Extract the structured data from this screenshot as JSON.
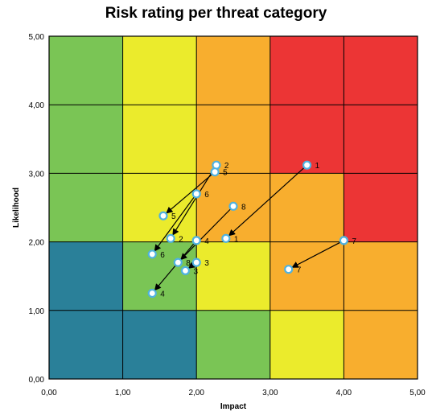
{
  "chart_data": {
    "type": "scatter",
    "title": "Risk rating per threat category",
    "xlabel": "Impact",
    "ylabel": "Likelihood",
    "xlim": [
      0,
      5
    ],
    "ylim": [
      0,
      5
    ],
    "x_ticks": [
      "0,00",
      "1,00",
      "2,00",
      "3,00",
      "4,00",
      "5,00"
    ],
    "y_ticks": [
      "0,00",
      "1,00",
      "2,00",
      "3,00",
      "4,00",
      "5,00"
    ],
    "grid": true,
    "background_zones": {
      "rows_top_to_bottom": [
        [
          "green",
          "yellow",
          "orange",
          "red",
          "red"
        ],
        [
          "green",
          "yellow",
          "orange",
          "red",
          "red"
        ],
        [
          "green",
          "yellow",
          "orange",
          "orange",
          "red"
        ],
        [
          "blue",
          "green",
          "yellow",
          "orange",
          "orange"
        ],
        [
          "blue",
          "blue",
          "green",
          "yellow",
          "orange"
        ]
      ],
      "colors": {
        "green": "#7ac555",
        "yellow": "#ebeb2c",
        "orange": "#f8ae2e",
        "red": "#ec3535",
        "blue": "#2a8099"
      }
    },
    "marker_color": "#4fb2e0",
    "arrows": [
      {
        "label": "1",
        "from": [
          3.5,
          3.12
        ],
        "to": [
          2.4,
          2.05
        ]
      },
      {
        "label": "2",
        "from": [
          2.27,
          3.12
        ],
        "to": [
          1.65,
          2.05
        ]
      },
      {
        "label": "3",
        "from": [
          2.0,
          1.7
        ],
        "to": [
          1.85,
          1.58
        ]
      },
      {
        "label": "4",
        "from": [
          2.0,
          2.02
        ],
        "to": [
          1.4,
          1.25
        ]
      },
      {
        "label": "5",
        "from": [
          2.25,
          3.02
        ],
        "to": [
          1.55,
          2.38
        ]
      },
      {
        "label": "6",
        "from": [
          2.0,
          2.7
        ],
        "to": [
          1.4,
          1.82
        ]
      },
      {
        "label": "7",
        "from": [
          4.0,
          2.02
        ],
        "to": [
          3.25,
          1.6
        ]
      },
      {
        "label": "8",
        "from": [
          2.5,
          2.52
        ],
        "to": [
          1.75,
          1.7
        ]
      }
    ]
  }
}
